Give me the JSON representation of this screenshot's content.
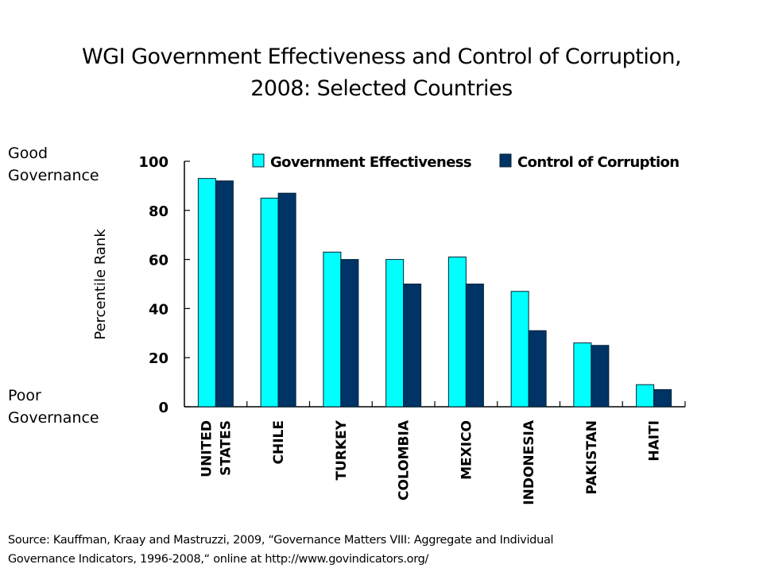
{
  "page": {
    "title_line1": "WGI Government Effectiveness and Control of Corruption,",
    "title_line2": "2008: Selected Countries",
    "good_label_line1": "Good",
    "good_label_line2": "Governance",
    "poor_label_line1": "Poor",
    "poor_label_line2": "Governance",
    "source_line1": "Source: Kauffman, Kraay and  Mastruzzi, 2009, “Governance Matters VIII: Aggregate and Individual",
    "source_line2": "Governance Indicators, 1996-2008,“ online at  http://www.govindicators.org/"
  },
  "chart_data": {
    "type": "bar",
    "title": "WGI Government Effectiveness and Control of Corruption, 2008: Selected Countries",
    "xlabel": "",
    "ylabel": "Percentile Rank",
    "ylim": [
      0,
      100
    ],
    "yticks": [
      0,
      20,
      40,
      60,
      80,
      100
    ],
    "grid": false,
    "legend_position": "top",
    "categories": [
      "UNITED STATES",
      "CHILE",
      "TURKEY",
      "COLOMBIA",
      "MEXICO",
      "INDONESIA",
      "PAKISTAN",
      "HAITI"
    ],
    "category_lines": [
      [
        "UNITED",
        "STATES"
      ],
      [
        "CHILE"
      ],
      [
        "TURKEY"
      ],
      [
        "COLOMBIA"
      ],
      [
        "MEXICO"
      ],
      [
        "INDONESIA"
      ],
      [
        "PAKISTAN"
      ],
      [
        "HAITI"
      ]
    ],
    "series": [
      {
        "name": "Government Effectiveness",
        "color": "#00FFFF",
        "values": [
          93,
          85,
          63,
          60,
          61,
          47,
          26,
          9
        ]
      },
      {
        "name": "Control of Corruption",
        "color": "#003366",
        "values": [
          92,
          87,
          60,
          50,
          50,
          31,
          25,
          7
        ]
      }
    ]
  }
}
